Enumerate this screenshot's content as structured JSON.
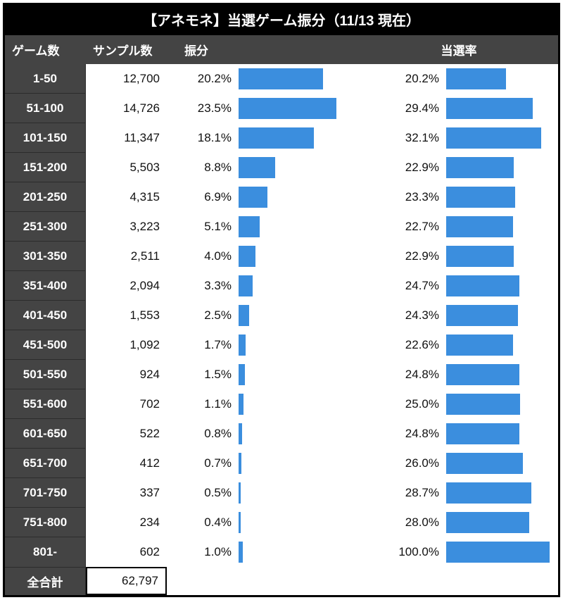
{
  "title": "【アネモネ】当選ゲーム振分（11/13 現在）",
  "headers": {
    "game": "ゲーム数",
    "sample": "サンプル数",
    "dist": "振分",
    "rate": "当選率"
  },
  "bar_color": "#3b8ede",
  "dist_scale_max_pct": 25.0,
  "rate_scale_max_pct": 35.0,
  "rows": [
    {
      "game": "1-50",
      "sample": "12,700",
      "dist_pct": "20.2%",
      "dist_val": 20.2,
      "rate_pct": "20.2%",
      "rate_val": 20.2
    },
    {
      "game": "51-100",
      "sample": "14,726",
      "dist_pct": "23.5%",
      "dist_val": 23.5,
      "rate_pct": "29.4%",
      "rate_val": 29.4
    },
    {
      "game": "101-150",
      "sample": "11,347",
      "dist_pct": "18.1%",
      "dist_val": 18.1,
      "rate_pct": "32.1%",
      "rate_val": 32.1
    },
    {
      "game": "151-200",
      "sample": "5,503",
      "dist_pct": "8.8%",
      "dist_val": 8.8,
      "rate_pct": "22.9%",
      "rate_val": 22.9
    },
    {
      "game": "201-250",
      "sample": "4,315",
      "dist_pct": "6.9%",
      "dist_val": 6.9,
      "rate_pct": "23.3%",
      "rate_val": 23.3
    },
    {
      "game": "251-300",
      "sample": "3,223",
      "dist_pct": "5.1%",
      "dist_val": 5.1,
      "rate_pct": "22.7%",
      "rate_val": 22.7
    },
    {
      "game": "301-350",
      "sample": "2,511",
      "dist_pct": "4.0%",
      "dist_val": 4.0,
      "rate_pct": "22.9%",
      "rate_val": 22.9
    },
    {
      "game": "351-400",
      "sample": "2,094",
      "dist_pct": "3.3%",
      "dist_val": 3.3,
      "rate_pct": "24.7%",
      "rate_val": 24.7
    },
    {
      "game": "401-450",
      "sample": "1,553",
      "dist_pct": "2.5%",
      "dist_val": 2.5,
      "rate_pct": "24.3%",
      "rate_val": 24.3
    },
    {
      "game": "451-500",
      "sample": "1,092",
      "dist_pct": "1.7%",
      "dist_val": 1.7,
      "rate_pct": "22.6%",
      "rate_val": 22.6
    },
    {
      "game": "501-550",
      "sample": "924",
      "dist_pct": "1.5%",
      "dist_val": 1.5,
      "rate_pct": "24.8%",
      "rate_val": 24.8
    },
    {
      "game": "551-600",
      "sample": "702",
      "dist_pct": "1.1%",
      "dist_val": 1.1,
      "rate_pct": "25.0%",
      "rate_val": 25.0
    },
    {
      "game": "601-650",
      "sample": "522",
      "dist_pct": "0.8%",
      "dist_val": 0.8,
      "rate_pct": "24.8%",
      "rate_val": 24.8
    },
    {
      "game": "651-700",
      "sample": "412",
      "dist_pct": "0.7%",
      "dist_val": 0.7,
      "rate_pct": "26.0%",
      "rate_val": 26.0
    },
    {
      "game": "701-750",
      "sample": "337",
      "dist_pct": "0.5%",
      "dist_val": 0.5,
      "rate_pct": "28.7%",
      "rate_val": 28.7
    },
    {
      "game": "751-800",
      "sample": "234",
      "dist_pct": "0.4%",
      "dist_val": 0.4,
      "rate_pct": "28.0%",
      "rate_val": 28.0
    },
    {
      "game": "801-",
      "sample": "602",
      "dist_pct": "1.0%",
      "dist_val": 1.0,
      "rate_pct": "100.0%",
      "rate_val": 35.0
    }
  ],
  "total": {
    "label": "全合計",
    "value": "62,797"
  }
}
